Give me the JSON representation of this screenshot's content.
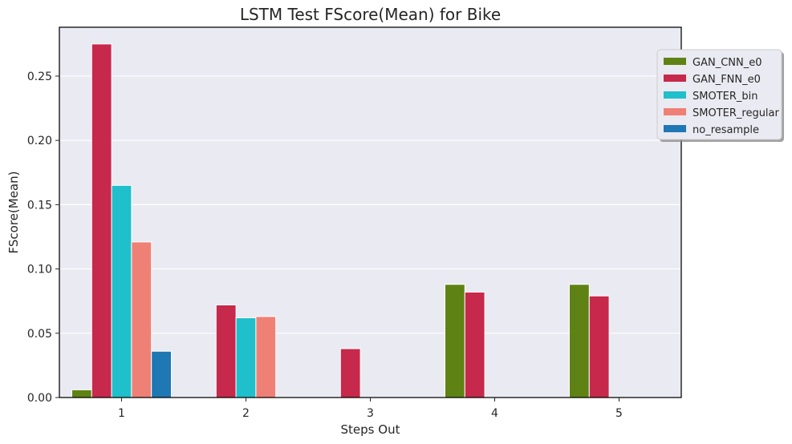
{
  "chart_data": {
    "type": "bar",
    "title": "LSTM Test FScore(Mean) for Bike",
    "xlabel": "Steps Out",
    "ylabel": "FScore(Mean)",
    "categories": [
      "1",
      "2",
      "3",
      "4",
      "5"
    ],
    "ylim": [
      0,
      0.288
    ],
    "yticks": [
      0.0,
      0.05,
      0.1,
      0.15,
      0.2,
      0.25
    ],
    "ytick_labels": [
      "0.00",
      "0.05",
      "0.10",
      "0.15",
      "0.20",
      "0.25"
    ],
    "grid": true,
    "legend_position": "top-right",
    "series": [
      {
        "name": "GAN_CNN_e0",
        "color": "#5f8214",
        "values": [
          0.006,
          0,
          0,
          0.088,
          0.088
        ]
      },
      {
        "name": "GAN_FNN_e0",
        "color": "#c6294b",
        "values": [
          0.275,
          0.072,
          0.038,
          0.082,
          0.079
        ]
      },
      {
        "name": "SMOTER_bin",
        "color": "#1fbfcb",
        "values": [
          0.165,
          0.062,
          0,
          0,
          0
        ]
      },
      {
        "name": "SMOTER_regular",
        "color": "#ef8075",
        "values": [
          0.121,
          0.063,
          0,
          0,
          0
        ]
      },
      {
        "name": "no_resample",
        "color": "#1f77b4",
        "values": [
          0.036,
          0,
          0,
          0,
          0
        ]
      }
    ]
  }
}
